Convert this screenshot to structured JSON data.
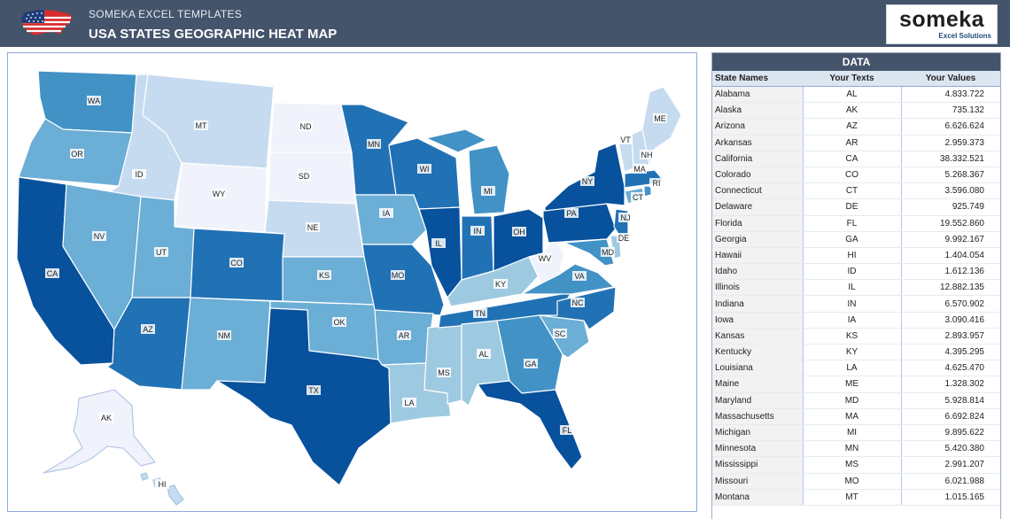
{
  "header": {
    "brand_small": "SOMEKA EXCEL TEMPLATES",
    "title": "USA STATES GEOGRAPHIC HEAT MAP",
    "logo_text": "someka",
    "logo_tagline": "Excel Solutions",
    "flag_icon": "us-flag-map-icon"
  },
  "colors": {
    "header_bg": "#44546a",
    "darkest": "#08519c",
    "dark": "#2171b5",
    "medium": "#4292c6",
    "light_medium": "#6baed6",
    "light": "#9ecae1",
    "lighter": "#c6dbef",
    "lightest": "#f0f3fb"
  },
  "map": {
    "labels": [
      "WA",
      "OR",
      "CA",
      "ID",
      "NV",
      "MT",
      "WY",
      "UT",
      "AZ",
      "CO",
      "NM",
      "ND",
      "SD",
      "NE",
      "KS",
      "OK",
      "TX",
      "MN",
      "IA",
      "MO",
      "AR",
      "LA",
      "WI",
      "IL",
      "MS",
      "MI",
      "IN",
      "KY",
      "TN",
      "AL",
      "OH",
      "WV",
      "GA",
      "FL",
      "SC",
      "NC",
      "VA",
      "PA",
      "NY",
      "MD",
      "DE",
      "NJ",
      "CT",
      "RI",
      "MA",
      "VT",
      "NH",
      "ME",
      "AK",
      "HI"
    ]
  },
  "data_panel": {
    "title": "DATA",
    "headers": [
      "State Names",
      "Your Texts",
      "Your Values"
    ],
    "rows": [
      [
        "Alabama",
        "AL",
        "4.833.722"
      ],
      [
        "Alaska",
        "AK",
        "735.132"
      ],
      [
        "Arizona",
        "AZ",
        "6.626.624"
      ],
      [
        "Arkansas",
        "AR",
        "2.959.373"
      ],
      [
        "California",
        "CA",
        "38.332.521"
      ],
      [
        "Colorado",
        "CO",
        "5.268.367"
      ],
      [
        "Connecticut",
        "CT",
        "3.596.080"
      ],
      [
        "Delaware",
        "DE",
        "925.749"
      ],
      [
        "Florida",
        "FL",
        "19.552.860"
      ],
      [
        "Georgia",
        "GA",
        "9.992.167"
      ],
      [
        "Hawaii",
        "HI",
        "1.404.054"
      ],
      [
        "Idaho",
        "ID",
        "1.612.136"
      ],
      [
        "Illinois",
        "IL",
        "12.882.135"
      ],
      [
        "Indiana",
        "IN",
        "6.570.902"
      ],
      [
        "Iowa",
        "IA",
        "3.090.416"
      ],
      [
        "Kansas",
        "KS",
        "2.893.957"
      ],
      [
        "Kentucky",
        "KY",
        "4.395.295"
      ],
      [
        "Louisiana",
        "LA",
        "4.625.470"
      ],
      [
        "Maine",
        "ME",
        "1.328.302"
      ],
      [
        "Maryland",
        "MD",
        "5.928.814"
      ],
      [
        "Massachusetts",
        "MA",
        "6.692.824"
      ],
      [
        "Michigan",
        "MI",
        "9.895.622"
      ],
      [
        "Minnesota",
        "MN",
        "5.420.380"
      ],
      [
        "Mississippi",
        "MS",
        "2.991.207"
      ],
      [
        "Missouri",
        "MO",
        "6.021.988"
      ],
      [
        "Montana",
        "MT",
        "1.015.165"
      ]
    ]
  }
}
